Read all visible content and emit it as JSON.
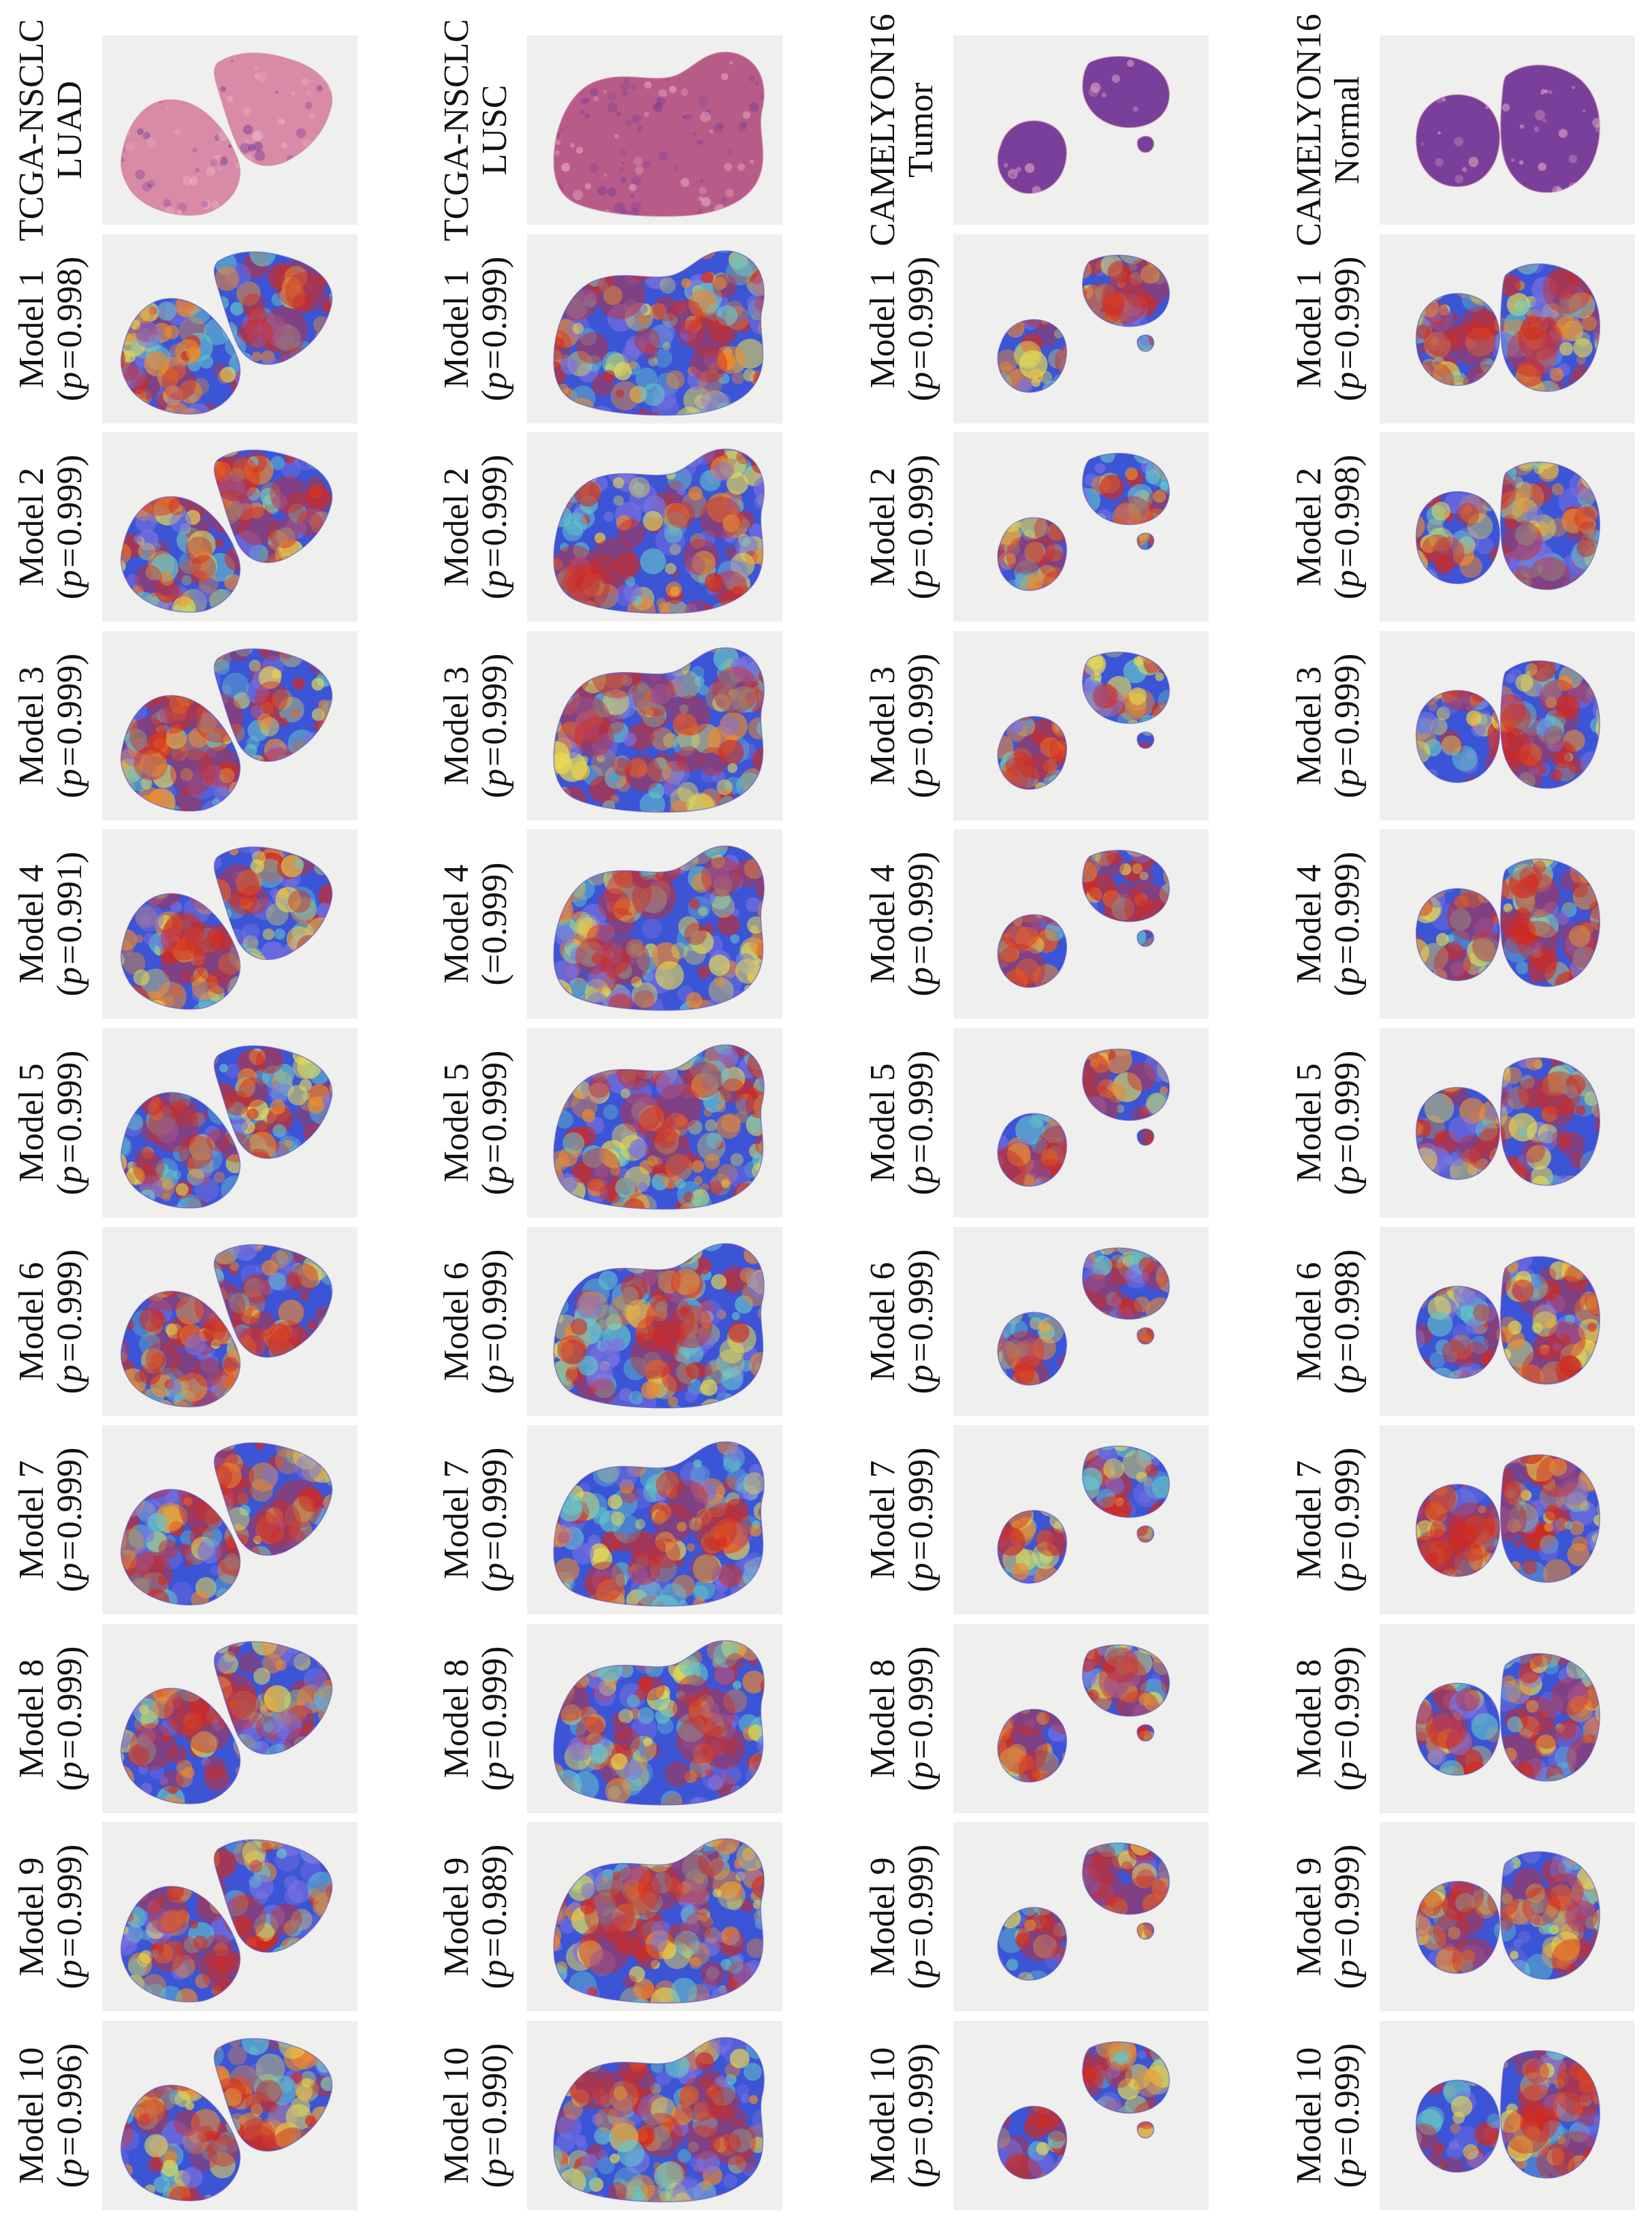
{
  "figure": {
    "columns": [
      {
        "header": [
          "TCGA-NSCLC",
          "LUAD"
        ],
        "tissue": "luad",
        "rows": [
          {
            "label": "Model 1",
            "p": "0.998",
            "prefix": "p="
          },
          {
            "label": "Model 2",
            "p": "0.999",
            "prefix": "p="
          },
          {
            "label": "Model 3",
            "p": "0.999",
            "prefix": "p="
          },
          {
            "label": "Model 4",
            "p": "0.991",
            "prefix": "p="
          },
          {
            "label": "Model 5",
            "p": "0.999",
            "prefix": "p="
          },
          {
            "label": "Model 6",
            "p": "0.999",
            "prefix": "p="
          },
          {
            "label": "Model 7",
            "p": "0.999",
            "prefix": "p="
          },
          {
            "label": "Model 8",
            "p": "0.999",
            "prefix": "p="
          },
          {
            "label": "Model 9",
            "p": "0.999",
            "prefix": "p="
          },
          {
            "label": "Model 10",
            "p": "0.996",
            "prefix": "p="
          }
        ]
      },
      {
        "header": [
          "TCGA-NSCLC",
          "LUSC"
        ],
        "tissue": "lusc",
        "rows": [
          {
            "label": "Model 1",
            "p": "0.999",
            "prefix": "p="
          },
          {
            "label": "Model 2",
            "p": "0.999",
            "prefix": "p="
          },
          {
            "label": "Model 3",
            "p": "0.999",
            "prefix": "p="
          },
          {
            "label": "Model 4",
            "p": "0.999",
            "prefix": "="
          },
          {
            "label": "Model 5",
            "p": "0.999",
            "prefix": "p="
          },
          {
            "label": "Model 6",
            "p": "0.999",
            "prefix": "p="
          },
          {
            "label": "Model 7",
            "p": "0.999",
            "prefix": "p="
          },
          {
            "label": "Model 8",
            "p": "0.999",
            "prefix": "p="
          },
          {
            "label": "Model 9",
            "p": "0.989",
            "prefix": "p="
          },
          {
            "label": "Model 10",
            "p": "0.990",
            "prefix": "p="
          }
        ]
      },
      {
        "header": [
          "CAMELYON16",
          "Tumor"
        ],
        "tissue": "tumor",
        "rows": [
          {
            "label": "Model 1",
            "p": "0.999",
            "prefix": "p="
          },
          {
            "label": "Model 2",
            "p": "0.999",
            "prefix": "p="
          },
          {
            "label": "Model 3",
            "p": "0.999",
            "prefix": "p="
          },
          {
            "label": "Model 4",
            "p": "0.999",
            "prefix": "p="
          },
          {
            "label": "Model 5",
            "p": "0.999",
            "prefix": "p="
          },
          {
            "label": "Model 6",
            "p": "0.999",
            "prefix": "p="
          },
          {
            "label": "Model 7",
            "p": "0.999",
            "prefix": "p="
          },
          {
            "label": "Model 8",
            "p": "0.999",
            "prefix": "p="
          },
          {
            "label": "Model 9",
            "p": "0.999",
            "prefix": "p="
          },
          {
            "label": "Model 10",
            "p": "0.999",
            "prefix": "p="
          }
        ]
      },
      {
        "header": [
          "CAMELYON16",
          "Normal"
        ],
        "tissue": "normal",
        "rows": [
          {
            "label": "Model 1",
            "p": "0.999",
            "prefix": "p="
          },
          {
            "label": "Model 2",
            "p": "0.998",
            "prefix": "p="
          },
          {
            "label": "Model 3",
            "p": "0.999",
            "prefix": "p="
          },
          {
            "label": "Model 4",
            "p": "0.999",
            "prefix": "p="
          },
          {
            "label": "Model 5",
            "p": "0.999",
            "prefix": "p="
          },
          {
            "label": "Model 6",
            "p": "0.998",
            "prefix": "p="
          },
          {
            "label": "Model 7",
            "p": "0.999",
            "prefix": "p="
          },
          {
            "label": "Model 8",
            "p": "0.999",
            "prefix": "p="
          },
          {
            "label": "Model 9",
            "p": "0.999",
            "prefix": "p="
          },
          {
            "label": "Model 10",
            "p": "0.999",
            "prefix": "p="
          }
        ]
      }
    ],
    "colors": {
      "tile_bg": "#efefed",
      "he_pink": "#d98aa6",
      "he_purple": "#7a3f9a",
      "heat_red": "#d22a1e",
      "heat_orange": "#f08a2a",
      "heat_yellow": "#e9dd4f",
      "heat_cyan": "#66c6c8",
      "heat_blue": "#3b55d6",
      "heat_violet": "#7b72df"
    }
  }
}
